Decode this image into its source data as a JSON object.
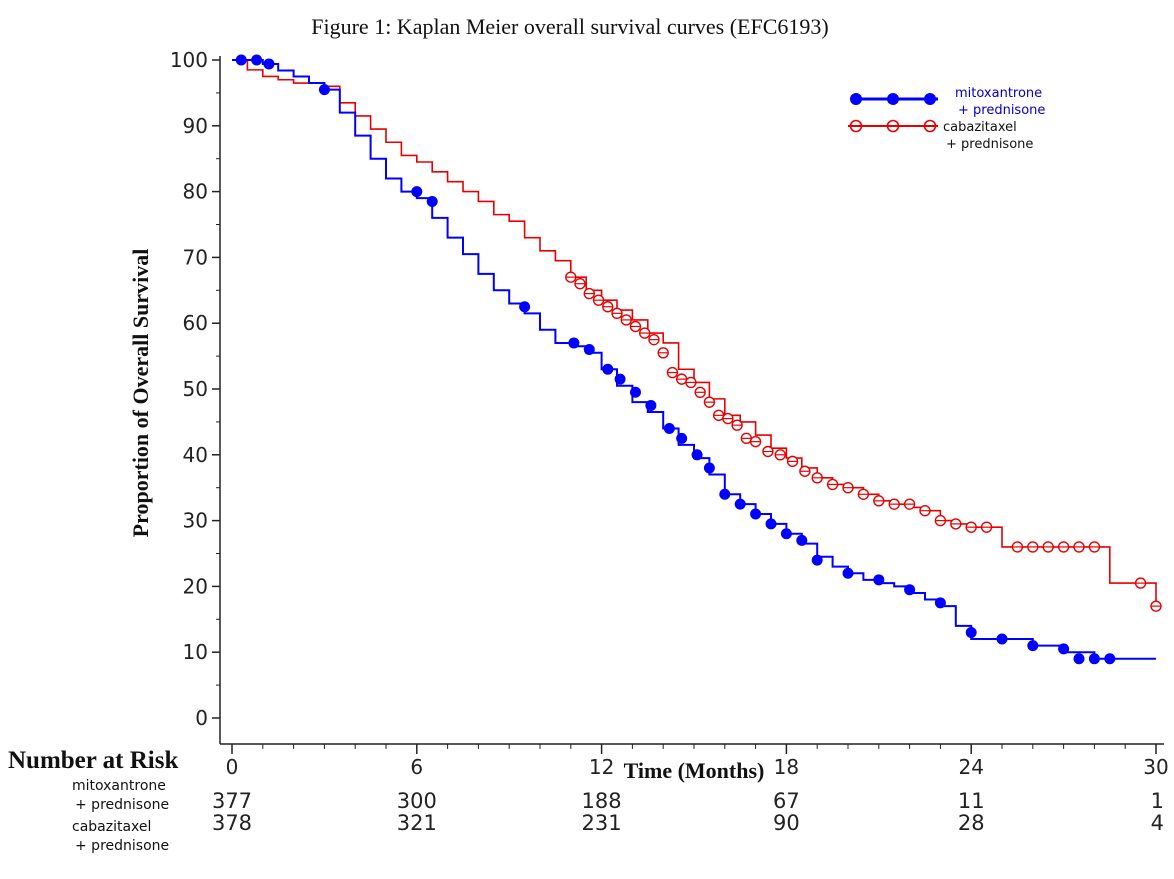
{
  "chart_data": {
    "type": "line",
    "title": "Figure 1: Kaplan Meier overall survival curves (EFC6193)",
    "xlabel": "Time (Months)",
    "ylabel": "Proportion of Overall Survival",
    "xlim": [
      0,
      30
    ],
    "ylim": [
      0,
      100
    ],
    "x_ticks": [
      0,
      6,
      12,
      18,
      24,
      30
    ],
    "y_ticks": [
      0,
      10,
      20,
      30,
      40,
      50,
      60,
      70,
      80,
      90,
      100
    ],
    "grid": false,
    "legend_position": "top-right",
    "series": [
      {
        "name_line1": "mitoxantrone",
        "name_line2": "+ prednisone",
        "color": "#0000ff",
        "marker": "filled-circle",
        "x": [
          0,
          0.5,
          1.0,
          1.5,
          2.0,
          2.5,
          3.0,
          3.5,
          4.0,
          4.5,
          5.0,
          5.5,
          6.0,
          6.5,
          7.0,
          7.5,
          8.0,
          8.5,
          9.0,
          9.5,
          10.0,
          10.5,
          11.0,
          11.5,
          12.0,
          12.5,
          13.0,
          13.5,
          14.0,
          14.5,
          15.0,
          15.5,
          16.0,
          16.5,
          17.0,
          17.5,
          18.0,
          18.5,
          19.0,
          19.5,
          20.0,
          20.5,
          21.0,
          21.5,
          22.0,
          22.5,
          23.0,
          23.5,
          24.0,
          25.0,
          26.0,
          27.0,
          28.0,
          29.0,
          30.0
        ],
        "y": [
          100,
          100,
          99.4,
          98.4,
          97.5,
          96.5,
          95.5,
          92,
          88.5,
          85,
          82,
          80,
          79,
          76,
          73,
          70.5,
          67.5,
          65,
          63,
          61.5,
          59,
          57,
          56.5,
          55.5,
          53,
          50.5,
          48,
          46.5,
          44,
          41.5,
          39.5,
          37,
          34,
          32.5,
          31,
          29.5,
          28,
          26.5,
          24.5,
          23,
          22,
          21,
          20.5,
          20,
          19,
          18,
          17,
          14,
          12,
          12,
          11,
          10,
          9,
          9,
          9
        ],
        "markers_x": [
          0.3,
          0.8,
          1.2,
          3.0,
          6.0,
          6.5,
          9.5,
          11.1,
          11.6,
          12.2,
          12.6,
          13.1,
          13.6,
          14.2,
          14.6,
          15.1,
          15.5,
          16.0,
          16.5,
          17.0,
          17.5,
          18.0,
          18.5,
          19.0,
          20.0,
          21.0,
          22.0,
          23.0,
          24.0,
          25.0,
          26.0,
          27.0,
          27.5,
          28.0,
          28.5
        ],
        "markers_y": [
          100,
          100,
          99.4,
          95.5,
          80,
          78.5,
          62.5,
          57,
          56,
          53,
          51.5,
          49.5,
          47.5,
          44,
          42.5,
          40,
          38,
          34,
          32.5,
          31,
          29.5,
          28,
          27,
          24,
          22,
          21,
          19.5,
          17.5,
          13,
          12,
          11,
          10.5,
          9,
          9,
          9
        ]
      },
      {
        "name_line1": "cabazitaxel",
        "name_line2": "+ prednisone",
        "color": "#e80000",
        "marker": "open-circle-bar",
        "x": [
          0,
          0.5,
          1.0,
          1.5,
          2.0,
          2.5,
          3.0,
          3.5,
          4.0,
          4.5,
          5.0,
          5.5,
          6.0,
          6.5,
          7.0,
          7.5,
          8.0,
          8.5,
          9.0,
          9.5,
          10.0,
          10.5,
          11.0,
          11.5,
          12.0,
          12.5,
          13.0,
          13.5,
          14.0,
          14.5,
          15.0,
          15.5,
          16.0,
          16.5,
          17.0,
          17.5,
          18.0,
          18.5,
          19.0,
          19.5,
          20.0,
          20.5,
          21.0,
          21.5,
          22.0,
          22.5,
          23.0,
          23.5,
          24.0,
          24.5,
          25.0,
          25.5,
          26.0,
          26.5,
          27.0,
          27.5,
          28.0,
          28.5,
          29.0,
          29.5,
          30.0
        ],
        "y": [
          100,
          98.5,
          97.5,
          97,
          96.5,
          96.5,
          96,
          93.5,
          91.5,
          89.5,
          87.5,
          85.5,
          84.5,
          83,
          81.5,
          80,
          78.5,
          76.5,
          75.5,
          73,
          71,
          69.5,
          67,
          65,
          63.5,
          62,
          60.5,
          58.5,
          57,
          53,
          51,
          48.5,
          46,
          45,
          43,
          41,
          39.5,
          38,
          36.5,
          35.5,
          35,
          34,
          33,
          32.5,
          32,
          31.5,
          30,
          29.5,
          29,
          29,
          26,
          26,
          26,
          26,
          26,
          26,
          26,
          20.5,
          20.5,
          20.5,
          17
        ],
        "markers_x": [
          11.0,
          11.3,
          11.6,
          11.9,
          12.2,
          12.5,
          12.8,
          13.1,
          13.4,
          13.7,
          14.0,
          14.3,
          14.6,
          14.9,
          15.2,
          15.5,
          15.8,
          16.1,
          16.4,
          16.7,
          17.0,
          17.4,
          17.8,
          18.2,
          18.6,
          19.0,
          19.5,
          20.0,
          20.5,
          21.0,
          21.5,
          22.0,
          22.5,
          23.0,
          23.5,
          24.0,
          24.5,
          25.5,
          26.0,
          26.5,
          27.0,
          27.5,
          28.0,
          29.5,
          30.0
        ],
        "markers_y": [
          67,
          66,
          64.5,
          63.5,
          62.5,
          61.5,
          60.5,
          59.5,
          58.5,
          57.5,
          55.5,
          52.5,
          51.5,
          51,
          49.5,
          48,
          46,
          45.5,
          44.5,
          42.5,
          42,
          40.5,
          40,
          39,
          37.5,
          36.5,
          35.5,
          35,
          34,
          33,
          32.5,
          32.5,
          31.5,
          30,
          29.5,
          29,
          29,
          26,
          26,
          26,
          26,
          26,
          26,
          20.5,
          17
        ]
      }
    ],
    "number_at_risk": {
      "heading": "Number at Risk",
      "rows": [
        {
          "label_line1": "mitoxantrone",
          "label_line2": "+ prednisone",
          "values": [
            377,
            300,
            188,
            67,
            11,
            1
          ]
        },
        {
          "label_line1": "cabazitaxel",
          "label_line2": "+ prednisone",
          "values": [
            378,
            321,
            231,
            90,
            28,
            4
          ]
        }
      ]
    }
  }
}
